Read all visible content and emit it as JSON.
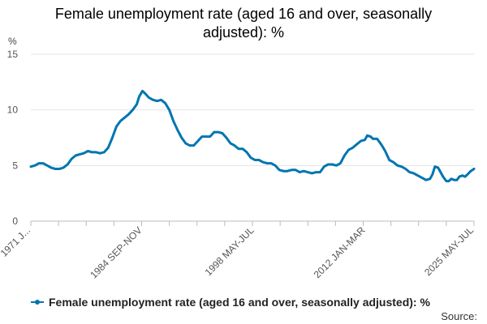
{
  "chart_data": {
    "type": "line",
    "title_line1": "Female unemployment rate (aged 16 and over, seasonally",
    "title_line2": "adjusted): %",
    "ylabel": "%",
    "ylim": [
      0,
      15
    ],
    "yticks": [
      0,
      5,
      10,
      15
    ],
    "xlim": [
      1971.0,
      2025.4
    ],
    "xtick_labels": [
      {
        "label": "1971 J...",
        "x": 1971.0
      },
      {
        "label": "1984 SEP-NOV",
        "x": 1984.7
      },
      {
        "label": "1998 MAY-JUL",
        "x": 1998.45
      },
      {
        "label": "2012 JAN-MAR",
        "x": 2012.1
      },
      {
        "label": "2025 MAY-JUL",
        "x": 2025.4
      }
    ],
    "grid": true,
    "series": [
      {
        "name": "Female unemployment rate (aged 16 and over, seasonally adjusted): %",
        "color": "#0075b0",
        "points": [
          [
            1971.0,
            4.9
          ],
          [
            1971.5,
            5.0
          ],
          [
            1972.0,
            5.2
          ],
          [
            1972.5,
            5.2
          ],
          [
            1973.0,
            5.0
          ],
          [
            1973.5,
            4.8
          ],
          [
            1974.0,
            4.7
          ],
          [
            1974.5,
            4.7
          ],
          [
            1975.0,
            4.8
          ],
          [
            1975.5,
            5.1
          ],
          [
            1976.0,
            5.6
          ],
          [
            1976.5,
            5.9
          ],
          [
            1977.0,
            6.0
          ],
          [
            1977.5,
            6.1
          ],
          [
            1978.0,
            6.3
          ],
          [
            1978.5,
            6.2
          ],
          [
            1979.0,
            6.2
          ],
          [
            1979.5,
            6.1
          ],
          [
            1980.0,
            6.2
          ],
          [
            1980.5,
            6.6
          ],
          [
            1981.0,
            7.5
          ],
          [
            1981.5,
            8.5
          ],
          [
            1982.0,
            9.0
          ],
          [
            1982.5,
            9.3
          ],
          [
            1983.0,
            9.6
          ],
          [
            1983.5,
            10.0
          ],
          [
            1984.0,
            10.5
          ],
          [
            1984.3,
            11.2
          ],
          [
            1984.7,
            11.7
          ],
          [
            1985.0,
            11.5
          ],
          [
            1985.5,
            11.1
          ],
          [
            1986.0,
            10.9
          ],
          [
            1986.5,
            10.8
          ],
          [
            1987.0,
            10.9
          ],
          [
            1987.5,
            10.6
          ],
          [
            1988.0,
            10.0
          ],
          [
            1988.5,
            9.0
          ],
          [
            1989.0,
            8.2
          ],
          [
            1989.5,
            7.5
          ],
          [
            1990.0,
            7.0
          ],
          [
            1990.5,
            6.8
          ],
          [
            1991.0,
            6.8
          ],
          [
            1991.5,
            7.2
          ],
          [
            1992.0,
            7.6
          ],
          [
            1992.5,
            7.6
          ],
          [
            1993.0,
            7.6
          ],
          [
            1993.5,
            8.0
          ],
          [
            1994.0,
            8.0
          ],
          [
            1994.5,
            7.9
          ],
          [
            1995.0,
            7.5
          ],
          [
            1995.5,
            7.0
          ],
          [
            1996.0,
            6.8
          ],
          [
            1996.5,
            6.5
          ],
          [
            1997.0,
            6.5
          ],
          [
            1997.5,
            6.2
          ],
          [
            1998.0,
            5.7
          ],
          [
            1998.5,
            5.5
          ],
          [
            1999.0,
            5.5
          ],
          [
            1999.5,
            5.3
          ],
          [
            2000.0,
            5.2
          ],
          [
            2000.5,
            5.2
          ],
          [
            2001.0,
            5.0
          ],
          [
            2001.5,
            4.6
          ],
          [
            2002.0,
            4.5
          ],
          [
            2002.5,
            4.5
          ],
          [
            2003.0,
            4.6
          ],
          [
            2003.5,
            4.6
          ],
          [
            2004.0,
            4.4
          ],
          [
            2004.5,
            4.5
          ],
          [
            2005.0,
            4.4
          ],
          [
            2005.5,
            4.3
          ],
          [
            2006.0,
            4.4
          ],
          [
            2006.5,
            4.4
          ],
          [
            2007.0,
            4.9
          ],
          [
            2007.5,
            5.1
          ],
          [
            2008.0,
            5.1
          ],
          [
            2008.5,
            5.0
          ],
          [
            2009.0,
            5.2
          ],
          [
            2009.5,
            5.9
          ],
          [
            2010.0,
            6.4
          ],
          [
            2010.5,
            6.6
          ],
          [
            2011.0,
            6.9
          ],
          [
            2011.5,
            7.2
          ],
          [
            2012.0,
            7.3
          ],
          [
            2012.3,
            7.7
          ],
          [
            2012.7,
            7.6
          ],
          [
            2013.0,
            7.4
          ],
          [
            2013.5,
            7.4
          ],
          [
            2014.0,
            6.9
          ],
          [
            2014.5,
            6.3
          ],
          [
            2015.0,
            5.5
          ],
          [
            2015.5,
            5.3
          ],
          [
            2016.0,
            5.0
          ],
          [
            2016.5,
            4.9
          ],
          [
            2017.0,
            4.7
          ],
          [
            2017.5,
            4.4
          ],
          [
            2018.0,
            4.3
          ],
          [
            2018.5,
            4.1
          ],
          [
            2019.0,
            3.9
          ],
          [
            2019.5,
            3.7
          ],
          [
            2020.0,
            3.8
          ],
          [
            2020.3,
            4.2
          ],
          [
            2020.6,
            4.9
          ],
          [
            2021.0,
            4.8
          ],
          [
            2021.3,
            4.4
          ],
          [
            2021.6,
            4.0
          ],
          [
            2022.0,
            3.6
          ],
          [
            2022.3,
            3.6
          ],
          [
            2022.6,
            3.8
          ],
          [
            2023.0,
            3.7
          ],
          [
            2023.3,
            3.7
          ],
          [
            2023.6,
            4.0
          ],
          [
            2024.0,
            4.1
          ],
          [
            2024.3,
            4.0
          ],
          [
            2024.6,
            4.2
          ],
          [
            2025.0,
            4.5
          ],
          [
            2025.4,
            4.7
          ]
        ]
      }
    ],
    "legend_label": "Female unemployment rate (aged 16 and over, seasonally adjusted): %",
    "legend_position": "bottom-left",
    "source_label": "Source:"
  }
}
